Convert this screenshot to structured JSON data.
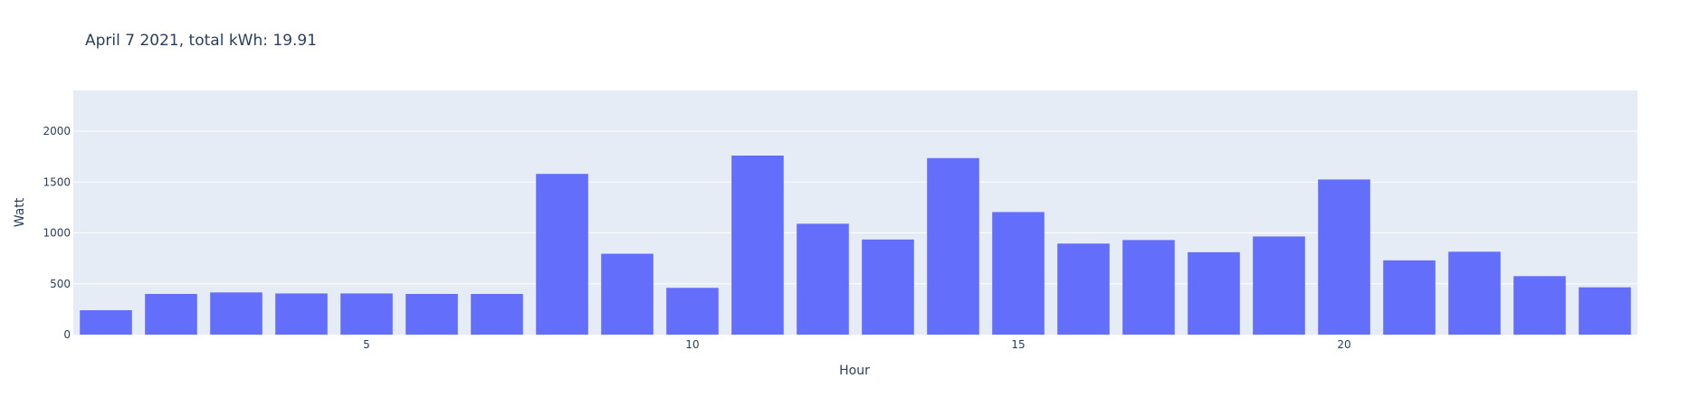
{
  "chart_data": {
    "type": "bar",
    "title": "April 7 2021, total kWh: 19.91",
    "xlabel": "Hour",
    "ylabel": "Watt",
    "x": [
      1,
      2,
      3,
      4,
      5,
      6,
      7,
      8,
      9,
      10,
      11,
      12,
      13,
      14,
      15,
      16,
      17,
      18,
      19,
      20,
      21,
      22,
      23,
      24
    ],
    "values": [
      240,
      400,
      415,
      405,
      405,
      400,
      400,
      1580,
      795,
      460,
      1760,
      1090,
      935,
      1735,
      1205,
      895,
      930,
      810,
      965,
      1525,
      730,
      815,
      575,
      465
    ],
    "xlim": [
      0.5,
      24.5
    ],
    "ylim": [
      0,
      2400
    ],
    "xticks": [
      5,
      10,
      15,
      20
    ],
    "xtick_labels": [
      "5",
      "10",
      "15",
      "20"
    ],
    "yticks": [
      0,
      500,
      1000,
      1500,
      2000
    ],
    "ytick_labels": [
      "0",
      "500",
      "1000",
      "1500",
      "2000"
    ],
    "grid": true,
    "legend": "none",
    "colors": {
      "bar": "#636efa",
      "plot_background": "#e5ecf6",
      "grid": "#ffffff",
      "text": "#2a3f5f"
    }
  }
}
